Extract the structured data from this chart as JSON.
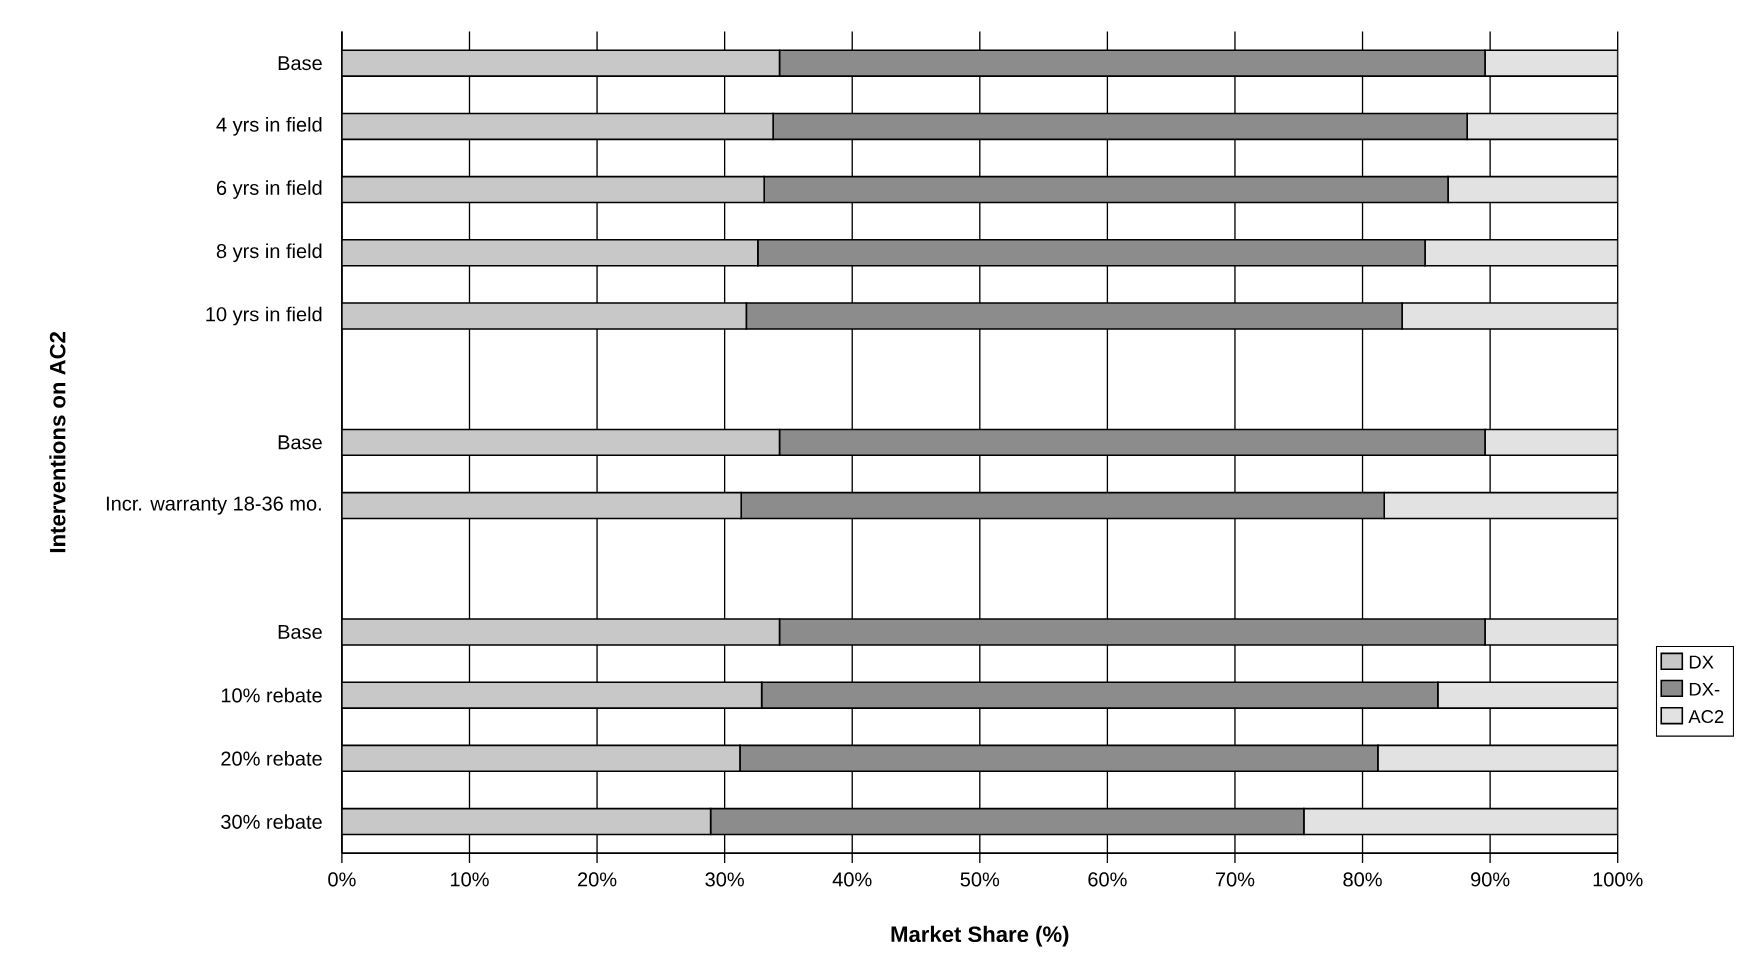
{
  "chart_data": {
    "type": "bar",
    "orientation": "horizontal",
    "stacked": true,
    "xlabel": "Market Share (%)",
    "ylabel": "Interventions on AC2",
    "categories": [
      "Base",
      "4 yrs in field",
      "6 yrs in field",
      "8 yrs in field",
      "10 yrs in field",
      null,
      "Base",
      "Incr. warranty 18-36 mo.",
      null,
      "Base",
      "10% rebate",
      "20% rebate",
      "30% rebate"
    ],
    "series": [
      {
        "name": "DX",
        "color": "#c8c8c8",
        "values": [
          34.3,
          33.8,
          33.1,
          32.6,
          31.7,
          null,
          34.3,
          31.3,
          null,
          34.3,
          32.9,
          31.2,
          28.9
        ]
      },
      {
        "name": "DX-",
        "color": "#8c8c8c",
        "values": [
          55.3,
          54.4,
          53.6,
          52.3,
          51.4,
          null,
          55.3,
          50.4,
          null,
          55.3,
          53.0,
          50.0,
          46.5
        ]
      },
      {
        "name": "AC2",
        "color": "#e2e2e2",
        "values": [
          10.4,
          11.8,
          13.3,
          15.1,
          16.9,
          null,
          10.4,
          18.3,
          null,
          10.4,
          14.1,
          18.8,
          24.6
        ]
      }
    ],
    "xlim": [
      0,
      100
    ],
    "xticks": [
      {
        "value": 0,
        "label": "0%"
      },
      {
        "value": 10,
        "label": "10%"
      },
      {
        "value": 20,
        "label": "20%"
      },
      {
        "value": 30,
        "label": "30%"
      },
      {
        "value": 40,
        "label": "40%"
      },
      {
        "value": 50,
        "label": "50%"
      },
      {
        "value": 60,
        "label": "60%"
      },
      {
        "value": 70,
        "label": "70%"
      },
      {
        "value": 80,
        "label": "80%"
      },
      {
        "value": 90,
        "label": "90%"
      },
      {
        "value": 100,
        "label": "100%"
      }
    ],
    "grid": "x",
    "legend": "right"
  }
}
